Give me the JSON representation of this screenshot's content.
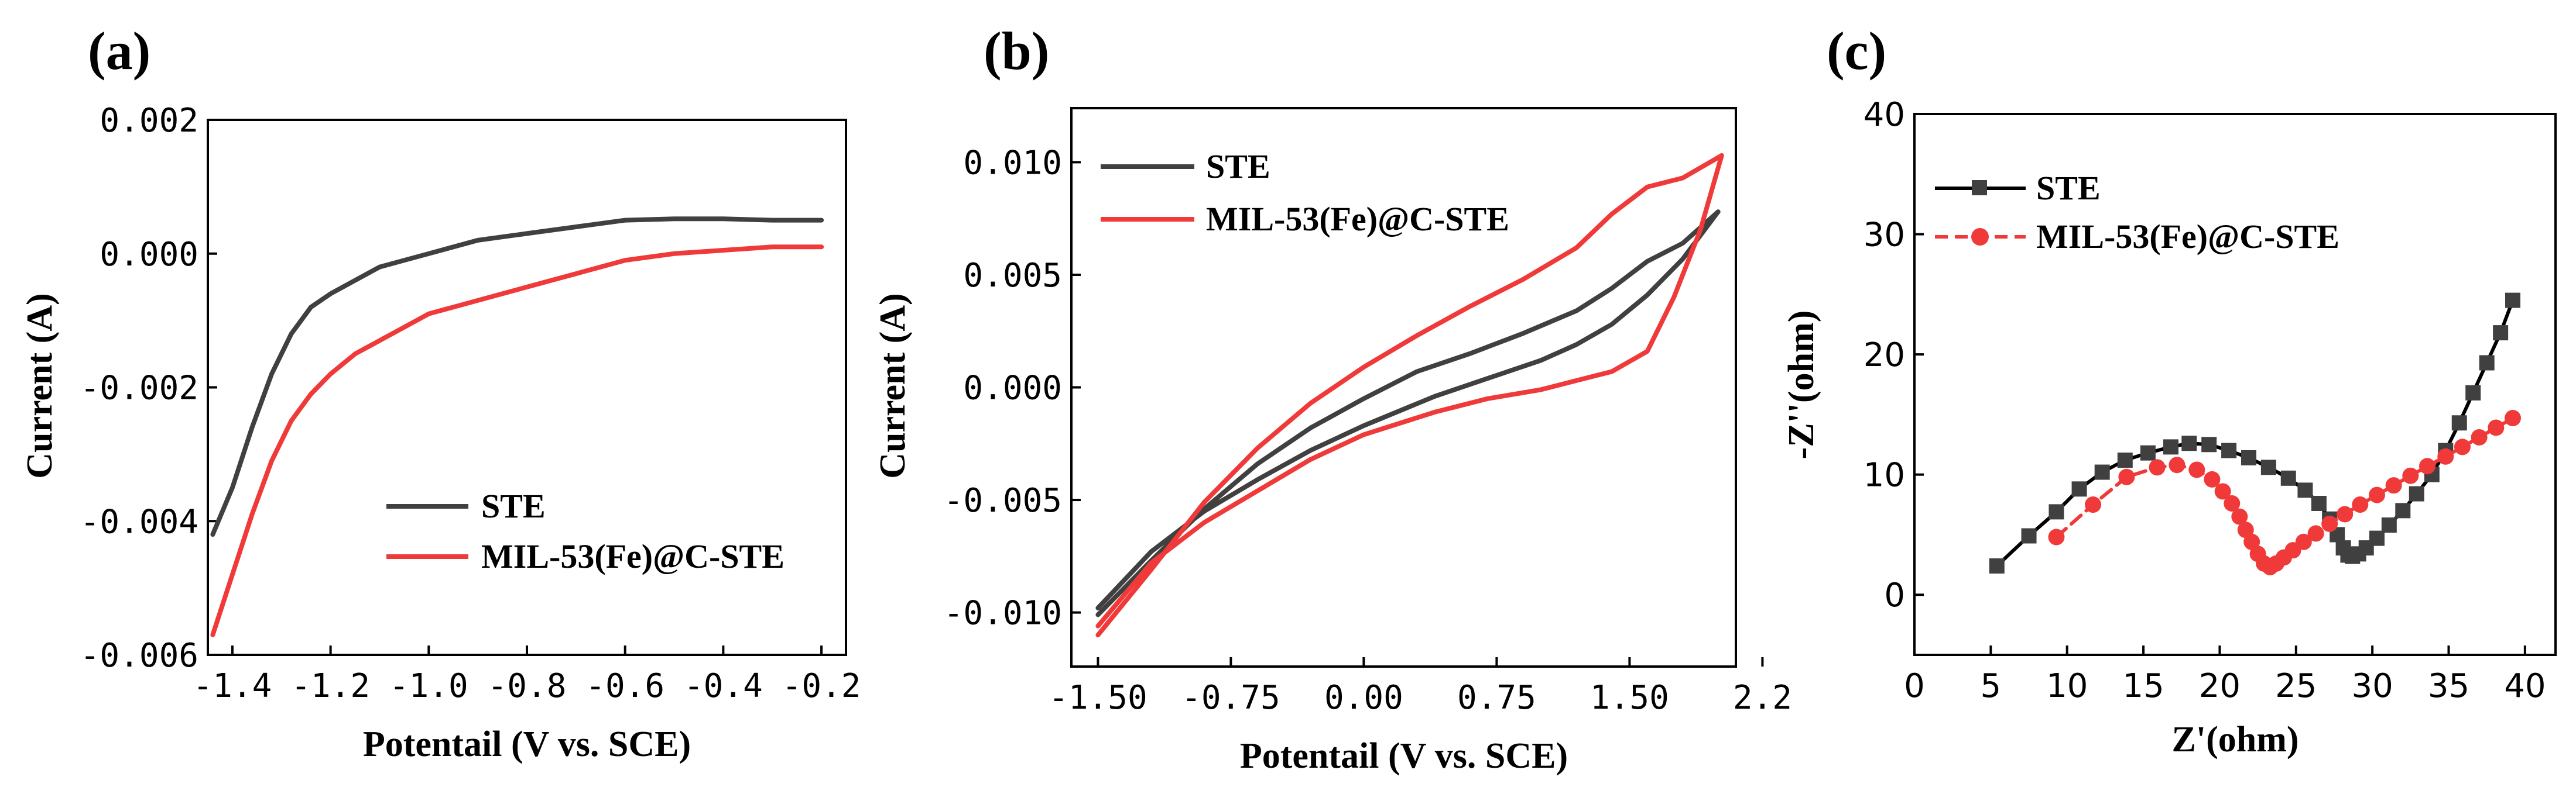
{
  "colors": {
    "ste": "#404040",
    "mil": "#f03a3a",
    "axis": "#000000"
  },
  "chart_data": [
    {
      "type": "line",
      "panel_label": "(a)",
      "xlabel": "Potentail (V vs. SCE)",
      "ylabel": "Current (A)",
      "xlim": [
        -1.45,
        -0.15
      ],
      "ylim": [
        -0.006,
        0.002
      ],
      "xticks": [
        -1.4,
        -1.2,
        -1.0,
        -0.8,
        -0.6,
        -0.4,
        -0.2
      ],
      "xtick_labels": [
        "-1.4",
        "-1.2",
        "-1.0",
        "-0.8",
        "-0.6",
        "-0.4",
        "-0.2"
      ],
      "yticks": [
        -0.006,
        -0.004,
        -0.002,
        0.0,
        0.002
      ],
      "ytick_labels": [
        "-0.006",
        "-0.004",
        "-0.002",
        "0.000",
        "0.002"
      ],
      "legend": [
        "STE",
        "MIL-53(Fe)@C-STE"
      ],
      "legend_position": "lower-right",
      "series": [
        {
          "name": "STE",
          "color_key": "ste",
          "x": [
            -1.44,
            -1.4,
            -1.36,
            -1.32,
            -1.28,
            -1.24,
            -1.2,
            -1.15,
            -1.1,
            -1.05,
            -1.0,
            -0.9,
            -0.8,
            -0.7,
            -0.6,
            -0.5,
            -0.4,
            -0.3,
            -0.2
          ],
          "y": [
            -0.0042,
            -0.0035,
            -0.0026,
            -0.0018,
            -0.0012,
            -0.0008,
            -0.0006,
            -0.0004,
            -0.0002,
            -0.0001,
            0.0,
            0.0002,
            0.0003,
            0.0004,
            0.0005,
            0.00052,
            0.00052,
            0.0005,
            0.0005
          ]
        },
        {
          "name": "MIL-53(Fe)@C-STE",
          "color_key": "mil",
          "x": [
            -1.44,
            -1.4,
            -1.36,
            -1.32,
            -1.28,
            -1.24,
            -1.2,
            -1.15,
            -1.1,
            -1.05,
            -1.0,
            -0.9,
            -0.8,
            -0.7,
            -0.6,
            -0.5,
            -0.4,
            -0.3,
            -0.2
          ],
          "y": [
            -0.0057,
            -0.0048,
            -0.0039,
            -0.0031,
            -0.0025,
            -0.0021,
            -0.0018,
            -0.0015,
            -0.0013,
            -0.0011,
            -0.0009,
            -0.0007,
            -0.0005,
            -0.0003,
            -0.0001,
            0.0,
            5e-05,
            0.0001,
            0.0001
          ]
        }
      ]
    },
    {
      "type": "line",
      "panel_label": "(b)",
      "xlabel": "Potentail (V vs. SCE)",
      "ylabel": "Current (A)",
      "xlim": [
        -1.65,
        2.1
      ],
      "ylim": [
        -0.0124,
        0.0124
      ],
      "xticks": [
        -1.5,
        -0.75,
        0.0,
        0.75,
        1.5,
        2.25
      ],
      "xtick_labels": [
        "-1.50",
        "-0.75",
        "0.00",
        "0.75",
        "1.50",
        "2.2"
      ],
      "yticks": [
        -0.01,
        -0.005,
        0.0,
        0.005,
        0.01
      ],
      "ytick_labels": [
        "-0.010",
        "-0.005",
        "0.000",
        "0.005",
        "0.010"
      ],
      "legend": [
        "STE",
        "MIL-53(Fe)@C-STE"
      ],
      "legend_position": "top-left",
      "series": [
        {
          "name": "STE",
          "color_key": "ste",
          "x": [
            -1.5,
            -1.2,
            -0.9,
            -0.6,
            -0.3,
            0.0,
            0.3,
            0.6,
            0.9,
            1.2,
            1.4,
            1.6,
            1.8,
            2.0,
            1.8,
            1.6,
            1.4,
            1.2,
            1.0,
            0.7,
            0.4,
            0.0,
            -0.3,
            -0.6,
            -0.9,
            -1.2,
            -1.5
          ],
          "y": [
            -0.0101,
            -0.0077,
            -0.0054,
            -0.0034,
            -0.0018,
            -0.0005,
            0.0007,
            0.0015,
            0.0024,
            0.0034,
            0.0044,
            0.0056,
            0.0064,
            0.0078,
            0.0057,
            0.0041,
            0.0028,
            0.0019,
            0.0012,
            0.0004,
            -0.0004,
            -0.0017,
            -0.0028,
            -0.0041,
            -0.0055,
            -0.0073,
            -0.0098
          ]
        },
        {
          "name": "MIL-53(Fe)@C-STE",
          "color_key": "mil",
          "x": [
            -1.5,
            -1.2,
            -0.9,
            -0.6,
            -0.3,
            0.0,
            0.3,
            0.6,
            0.9,
            1.2,
            1.4,
            1.6,
            1.8,
            2.02,
            1.9,
            1.75,
            1.6,
            1.4,
            1.2,
            1.0,
            0.7,
            0.4,
            0.0,
            -0.3,
            -0.6,
            -0.9,
            -1.2,
            -1.5
          ],
          "y": [
            -0.011,
            -0.0081,
            -0.0051,
            -0.0027,
            -0.0007,
            0.0009,
            0.0023,
            0.0036,
            0.0048,
            0.0062,
            0.0077,
            0.0089,
            0.0093,
            0.0103,
            0.007,
            0.004,
            0.0016,
            0.0007,
            0.0003,
            -0.0001,
            -0.0005,
            -0.0011,
            -0.0021,
            -0.0032,
            -0.0046,
            -0.006,
            -0.0078,
            -0.0106
          ]
        }
      ]
    },
    {
      "type": "line",
      "panel_label": "(c)",
      "xlabel": "Z'(ohm)",
      "ylabel": "-Z''(ohm)",
      "xlim": [
        0,
        42
      ],
      "ylim": [
        -5,
        40
      ],
      "xticks": [
        0,
        5,
        10,
        15,
        20,
        25,
        30,
        35,
        40
      ],
      "xtick_labels": [
        "0",
        "5",
        "10",
        "15",
        "20",
        "25",
        "30",
        "35",
        "40"
      ],
      "yticks": [
        0,
        10,
        20,
        30,
        40
      ],
      "ytick_labels": [
        "0",
        "10",
        "20",
        "30",
        "40"
      ],
      "legend": [
        "STE",
        "MIL-53(Fe)@C-STE"
      ],
      "legend_position": "top-left",
      "series": [
        {
          "name": "STE",
          "color_key": "ste",
          "marker": "square",
          "x": [
            5.4,
            7.5,
            9.3,
            10.8,
            12.3,
            13.8,
            15.3,
            16.8,
            18.0,
            19.3,
            20.6,
            21.9,
            23.2,
            24.5,
            25.6,
            26.5,
            27.2,
            27.7,
            28.1,
            28.4,
            28.7,
            29.1,
            29.6,
            30.3,
            31.1,
            32.0,
            32.9,
            33.9,
            34.8,
            35.7,
            36.6,
            37.5,
            38.4,
            39.2
          ],
          "y": [
            2.4,
            4.9,
            6.9,
            8.8,
            10.2,
            11.2,
            11.8,
            12.3,
            12.6,
            12.5,
            12.0,
            11.4,
            10.6,
            9.7,
            8.7,
            7.6,
            6.3,
            5.0,
            3.9,
            3.3,
            3.2,
            3.4,
            3.9,
            4.7,
            5.8,
            7.0,
            8.4,
            10.0,
            12.0,
            14.3,
            16.8,
            19.3,
            21.8,
            24.5
          ]
        },
        {
          "name": "MIL-53(Fe)@C-STE",
          "color_key": "mil",
          "marker": "circle",
          "x": [
            9.3,
            11.7,
            13.9,
            15.9,
            17.2,
            18.5,
            19.5,
            20.2,
            20.8,
            21.3,
            21.7,
            22.1,
            22.5,
            22.9,
            23.3,
            23.7,
            24.2,
            24.8,
            25.5,
            26.3,
            27.2,
            28.2,
            29.2,
            30.3,
            31.4,
            32.5,
            33.6,
            34.8,
            35.9,
            37.0,
            38.1,
            39.2
          ],
          "y": [
            4.8,
            7.5,
            9.8,
            10.6,
            10.8,
            10.4,
            9.6,
            8.6,
            7.6,
            6.5,
            5.4,
            4.4,
            3.4,
            2.6,
            2.3,
            2.6,
            3.1,
            3.7,
            4.4,
            5.1,
            5.9,
            6.7,
            7.5,
            8.3,
            9.1,
            9.9,
            10.7,
            11.5,
            12.3,
            13.1,
            13.9,
            14.7
          ]
        }
      ]
    }
  ]
}
